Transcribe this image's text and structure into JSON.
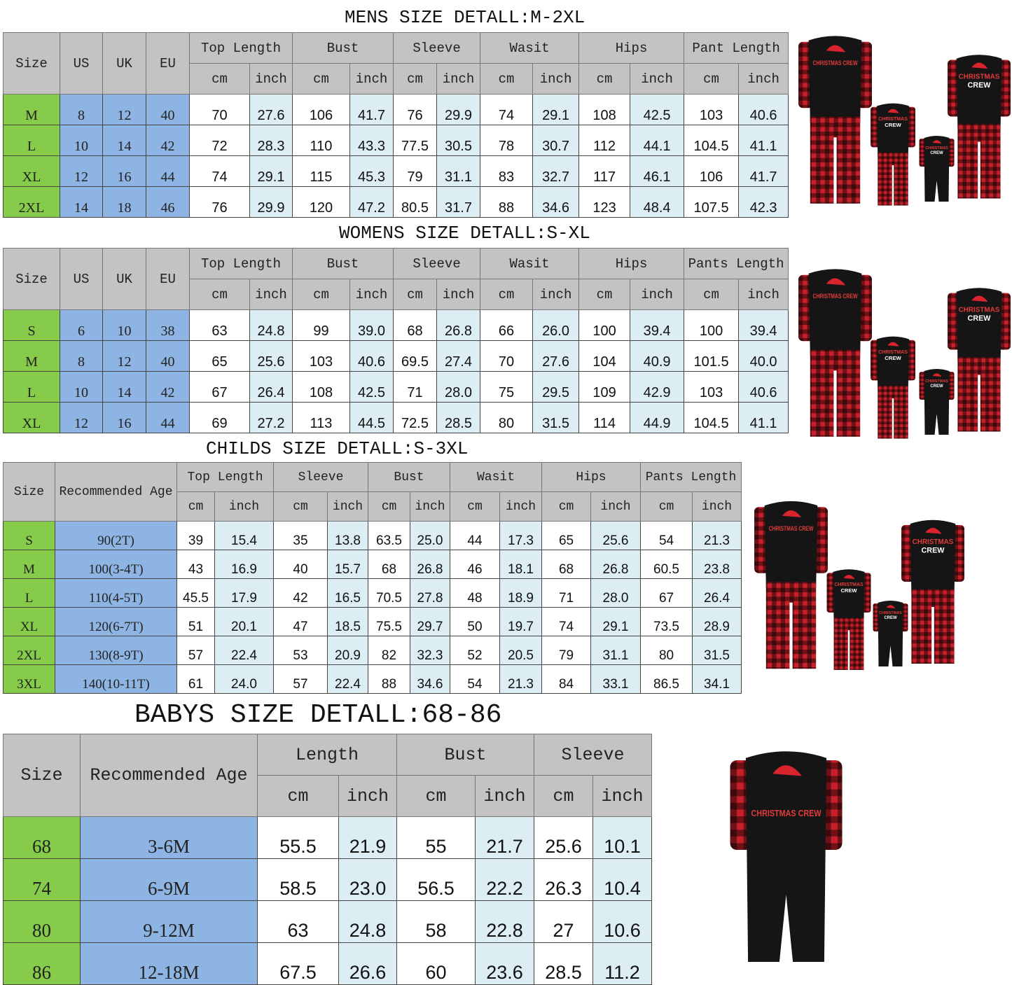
{
  "colors": {
    "size_col": "#86cc4a",
    "lead_col": "#8db4e2",
    "header": "#c3c3c3",
    "inch_col": "#dcedf4",
    "pajama_red": "#c8202a",
    "pajama_black": "#151515"
  },
  "tables": [
    {
      "id": "mens",
      "title": "MENS SIZE DETALL:M-2XL",
      "lead_headers": [
        "Size",
        "US",
        "UK",
        "EU"
      ],
      "groups": [
        "Top Length",
        "Bust",
        "Sleeve",
        "Wasit",
        "Hips",
        "Pant Length"
      ],
      "units": [
        "cm",
        "inch"
      ],
      "rows": [
        [
          "M",
          "8",
          "12",
          "40",
          "70",
          "27.6",
          "106",
          "41.7",
          "76",
          "29.9",
          "74",
          "29.1",
          "108",
          "42.5",
          "103",
          "40.6"
        ],
        [
          "L",
          "10",
          "14",
          "42",
          "72",
          "28.3",
          "110",
          "43.3",
          "77.5",
          "30.5",
          "78",
          "30.7",
          "112",
          "44.1",
          "104.5",
          "41.1"
        ],
        [
          "XL",
          "12",
          "16",
          "44",
          "74",
          "29.1",
          "115",
          "45.3",
          "79",
          "31.1",
          "83",
          "32.7",
          "117",
          "46.1",
          "106",
          "41.7"
        ],
        [
          "2XL",
          "14",
          "18",
          "46",
          "76",
          "29.9",
          "120",
          "47.2",
          "80.5",
          "31.7",
          "88",
          "34.6",
          "123",
          "48.4",
          "107.5",
          "42.3"
        ]
      ]
    },
    {
      "id": "womens",
      "title": "WOMENS SIZE DETALL:S-XL",
      "lead_headers": [
        "Size",
        "US",
        "UK",
        "EU"
      ],
      "groups": [
        "Top Length",
        "Bust",
        "Sleeve",
        "Wasit",
        "Hips",
        "Pants Length"
      ],
      "units": [
        "cm",
        "inch"
      ],
      "rows": [
        [
          "S",
          "6",
          "10",
          "38",
          "63",
          "24.8",
          "99",
          "39.0",
          "68",
          "26.8",
          "66",
          "26.0",
          "100",
          "39.4",
          "100",
          "39.4"
        ],
        [
          "M",
          "8",
          "12",
          "40",
          "65",
          "25.6",
          "103",
          "40.6",
          "69.5",
          "27.4",
          "70",
          "27.6",
          "104",
          "40.9",
          "101.5",
          "40.0"
        ],
        [
          "L",
          "10",
          "14",
          "42",
          "67",
          "26.4",
          "108",
          "42.5",
          "71",
          "28.0",
          "75",
          "29.5",
          "109",
          "42.9",
          "103",
          "40.6"
        ],
        [
          "XL",
          "12",
          "16",
          "44",
          "69",
          "27.2",
          "113",
          "44.5",
          "72.5",
          "28.5",
          "80",
          "31.5",
          "114",
          "44.9",
          "104.5",
          "41.1"
        ]
      ]
    },
    {
      "id": "childs",
      "title": "CHILDS SIZE DETALL:S-3XL",
      "lead_headers": [
        "Size",
        "Recommended Age"
      ],
      "groups": [
        "Top Length",
        "Sleeve",
        "Bust",
        "Wasit",
        "Hips",
        "Pants Length"
      ],
      "units": [
        "cm",
        "inch"
      ],
      "rows": [
        [
          "S",
          "90(2T)",
          "39",
          "15.4",
          "35",
          "13.8",
          "63.5",
          "25.0",
          "44",
          "17.3",
          "65",
          "25.6",
          "54",
          "21.3"
        ],
        [
          "M",
          "100(3-4T)",
          "43",
          "16.9",
          "40",
          "15.7",
          "68",
          "26.8",
          "46",
          "18.1",
          "68",
          "26.8",
          "60.5",
          "23.8"
        ],
        [
          "L",
          "110(4-5T)",
          "45.5",
          "17.9",
          "42",
          "16.5",
          "70.5",
          "27.8",
          "48",
          "18.9",
          "71",
          "28.0",
          "67",
          "26.4"
        ],
        [
          "XL",
          "120(6-7T)",
          "51",
          "20.1",
          "47",
          "18.5",
          "75.5",
          "29.7",
          "50",
          "19.7",
          "74",
          "29.1",
          "73.5",
          "28.9"
        ],
        [
          "2XL",
          "130(8-9T)",
          "57",
          "22.4",
          "53",
          "20.9",
          "82",
          "32.3",
          "52",
          "20.5",
          "79",
          "31.1",
          "80",
          "31.5"
        ],
        [
          "3XL",
          "140(10-11T)",
          "61",
          "24.0",
          "57",
          "22.4",
          "88",
          "34.6",
          "54",
          "21.3",
          "84",
          "33.1",
          "86.5",
          "34.1"
        ]
      ]
    },
    {
      "id": "babys",
      "title": "BABYS SIZE DETALL:68-86",
      "lead_headers": [
        "Size",
        "Recommended Age"
      ],
      "groups": [
        "Length",
        "Bust",
        "Sleeve"
      ],
      "units": [
        "cm",
        "inch"
      ],
      "rows": [
        [
          "68",
          "3-6M",
          "55.5",
          "21.9",
          "55",
          "21.7",
          "25.6",
          "10.1"
        ],
        [
          "74",
          "6-9M",
          "58.5",
          "23.0",
          "56.5",
          "22.2",
          "26.3",
          "10.4"
        ],
        [
          "80",
          "9-12M",
          "63",
          "24.8",
          "58",
          "22.8",
          "27",
          "10.6"
        ],
        [
          "86",
          "12-18M",
          "67.5",
          "26.6",
          "60",
          "23.6",
          "28.5",
          "11.2"
        ]
      ]
    }
  ],
  "product_images": [
    {
      "icon": "family-pajama-set-image",
      "print": "CHRISTMAS CREW"
    },
    {
      "icon": "family-pajama-set-image",
      "print": "CHRISTMAS CREW"
    },
    {
      "icon": "family-pajama-set-image",
      "print": "CHRISTMAS CREW"
    },
    {
      "icon": "baby-romper-image",
      "print": "CHRISTMAS CREW"
    }
  ]
}
